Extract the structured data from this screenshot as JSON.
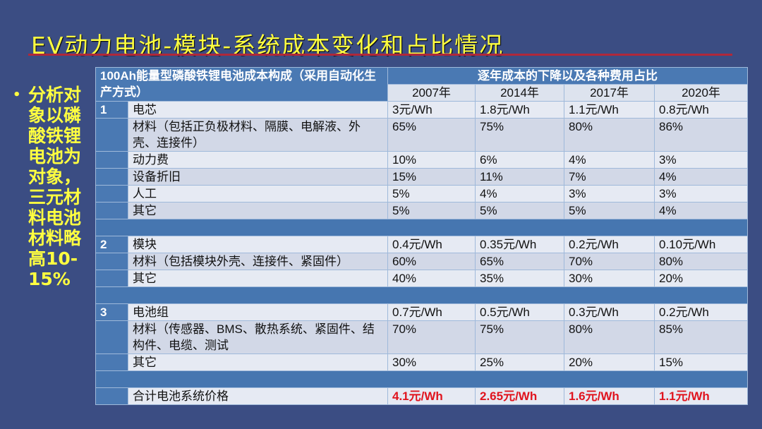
{
  "title": "EV动力电池-模块-系统成本变化和占比情况",
  "side_note": {
    "lines": [
      "分析对",
      "象以磷",
      "酸铁锂",
      "电池为",
      "对象，",
      "三元材",
      "料电池",
      "材料略",
      "高10-",
      "15%"
    ]
  },
  "table": {
    "header_left": "100Ah能量型磷酸铁锂电池成本构成（采用自动化生产方式）",
    "header_right": "逐年成本的下降以及各种费用占比",
    "years": [
      "2007年",
      "2014年",
      "2017年",
      "2020年"
    ],
    "rows": [
      {
        "num": "1",
        "label": "电芯",
        "values": [
          "3元/Wh",
          "1.8元/Wh",
          "1.1元/Wh",
          "0.8元/Wh"
        ]
      },
      {
        "num": "",
        "label": "材料（包括正负极材料、隔膜、电解液、外壳、连接件）",
        "values": [
          "65%",
          "75%",
          "80%",
          "86%"
        ]
      },
      {
        "num": "",
        "label": "动力费",
        "values": [
          "10%",
          "6%",
          "4%",
          "3%"
        ]
      },
      {
        "num": "",
        "label": "设备折旧",
        "values": [
          "15%",
          "11%",
          "7%",
          "4%"
        ]
      },
      {
        "num": "",
        "label": "人工",
        "values": [
          "5%",
          "4%",
          "3%",
          "3%"
        ]
      },
      {
        "num": "",
        "label": "其它",
        "values": [
          "5%",
          "5%",
          "5%",
          "4%"
        ]
      },
      {
        "separator": true
      },
      {
        "num": "2",
        "label": "模块",
        "values": [
          "0.4元/Wh",
          "0.35元/Wh",
          "0.2元/Wh",
          "0.10元/Wh"
        ]
      },
      {
        "num": "",
        "label": "材料（包括模块外壳、连接件、紧固件）",
        "values": [
          "60%",
          "65%",
          "70%",
          "80%"
        ]
      },
      {
        "num": "",
        "label": "其它",
        "values": [
          "40%",
          "35%",
          "30%",
          "20%"
        ]
      },
      {
        "separator": true
      },
      {
        "num": "3",
        "label": "电池组",
        "values": [
          "0.7元/Wh",
          "0.5元/Wh",
          "0.3元/Wh",
          "0.2元/Wh"
        ]
      },
      {
        "num": "",
        "label": "材料（传感器、BMS、散热系统、紧固件、结构件、电缆、测试",
        "values": [
          "70%",
          "75%",
          "80%",
          "85%"
        ]
      },
      {
        "num": "",
        "label": "其它",
        "values": [
          "30%",
          "25%",
          "20%",
          "15%"
        ]
      },
      {
        "separator": true
      },
      {
        "num": "",
        "label": "合计电池系统价格",
        "values": [
          "4.1元/Wh",
          "2.65元/Wh",
          "1.6元/Wh",
          "1.1元/Wh"
        ],
        "highlight": true
      }
    ]
  },
  "colors": {
    "title": "#ffff40",
    "background": "#3b4d83",
    "header": "#4a79b3",
    "total": "#e0141e"
  }
}
